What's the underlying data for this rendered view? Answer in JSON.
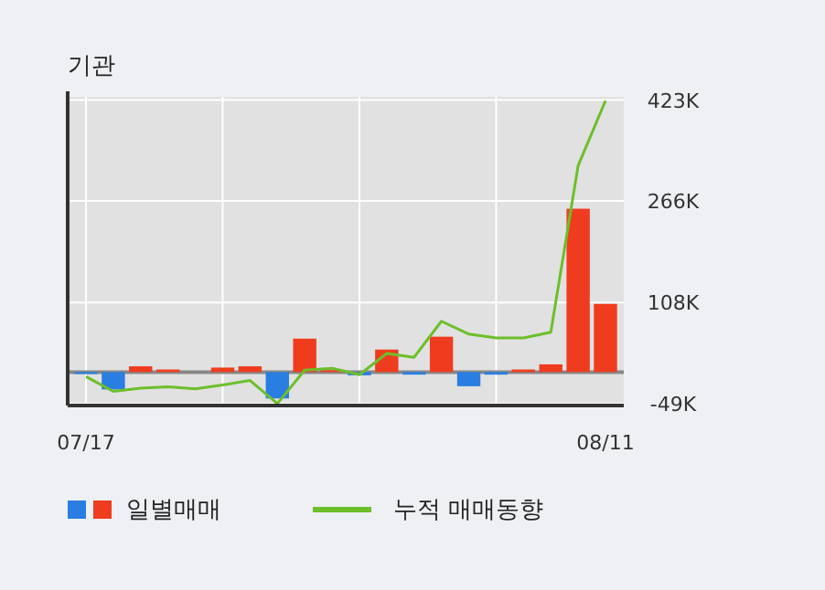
{
  "chart_data": {
    "type": "bar",
    "title": "기관",
    "categories": [
      "07/17",
      null,
      null,
      null,
      null,
      null,
      null,
      null,
      null,
      null,
      null,
      null,
      null,
      null,
      null,
      null,
      null,
      null,
      null,
      "08/11"
    ],
    "series": [
      {
        "name": "일별매매",
        "colors": [
          "#2a7de1",
          "#2a7de1",
          "#f03c1e",
          "#f03c1e",
          "#f03c1e",
          "#f03c1e",
          "#f03c1e",
          "#2a7de1",
          "#f03c1e",
          "#f03c1e",
          "#2a7de1",
          "#f03c1e",
          "#2a7de1",
          "#f03c1e",
          "#2a7de1",
          "#2a7de1",
          "#f03c1e",
          "#f03c1e",
          "#f03c1e",
          "#f03c1e"
        ],
        "values": [
          -3000,
          -27000,
          9000,
          4000,
          0,
          7000,
          9000,
          -41000,
          52000,
          3000,
          -5000,
          35000,
          -4000,
          55000,
          -22000,
          -4000,
          4000,
          12000,
          254000,
          106000
        ]
      },
      {
        "name": "누적 매매동향",
        "type": "line",
        "color": "#6cbf2a",
        "values": [
          -7000,
          -30000,
          -25000,
          -23000,
          -26000,
          -20000,
          -13000,
          -49000,
          3000,
          6000,
          -4000,
          29000,
          23000,
          79000,
          59000,
          53000,
          53000,
          62000,
          321000,
          422000
        ]
      }
    ],
    "ylim": [
      -52000,
      428000
    ],
    "yticks": [
      {
        "value": 423000,
        "label": "423K"
      },
      {
        "value": 266000,
        "label": "266K"
      },
      {
        "value": 108000,
        "label": "108K"
      },
      {
        "value": -49000,
        "label": "-49K"
      }
    ],
    "ref_lines": [
      {
        "axis": "y",
        "value": 0,
        "color": "#888888"
      }
    ],
    "grid": true,
    "legend": "bottom"
  }
}
